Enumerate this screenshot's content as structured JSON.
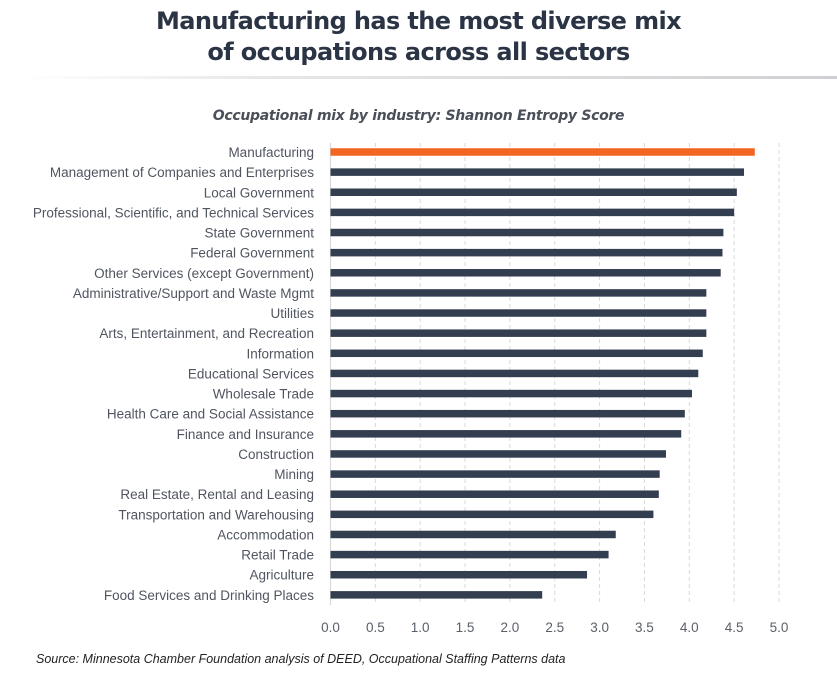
{
  "title": {
    "line1": "Manufacturing has the most diverse mix",
    "line2": "of occupations across all sectors"
  },
  "source": "Source: Minnesota Chamber Foundation analysis of DEED, Occupational Staffing Patterns data",
  "colors": {
    "highlight": "#f26522",
    "bar": "#333e50",
    "grid": "#d9d9d9",
    "title": "#2b3445"
  },
  "chart_data": {
    "type": "bar",
    "orientation": "horizontal",
    "title": "Occupational mix by industry: Shannon Entropy Score",
    "xlabel": "",
    "ylabel": "",
    "xlim": [
      0,
      5
    ],
    "xticks": [
      "0.0",
      "0.5",
      "1.0",
      "1.5",
      "2.0",
      "2.5",
      "3.0",
      "3.5",
      "4.0",
      "4.5",
      "5.0"
    ],
    "grid": true,
    "legend": "none",
    "highlighted_category": "Manufacturing",
    "categories": [
      "Manufacturing",
      "Management of Companies and Enterprises",
      "Local Government",
      "Professional, Scientific, and Technical Services",
      "State Government",
      "Federal Government",
      "Other Services (except Government)",
      "Administrative/Support and Waste Mgmt",
      "Utilities",
      "Arts, Entertainment, and Recreation",
      "Information",
      "Educational Services",
      "Wholesale Trade",
      "Health Care and Social Assistance",
      "Finance and Insurance",
      "Construction",
      "Mining",
      "Real Estate, Rental and Leasing",
      "Transportation and Warehousing",
      "Accommodation",
      "Retail Trade",
      "Agriculture",
      "Food Services and Drinking Places"
    ],
    "values": [
      4.73,
      4.61,
      4.53,
      4.5,
      4.38,
      4.37,
      4.35,
      4.19,
      4.19,
      4.19,
      4.15,
      4.1,
      4.03,
      3.95,
      3.91,
      3.74,
      3.67,
      3.66,
      3.6,
      3.18,
      3.1,
      2.86,
      2.36
    ]
  }
}
